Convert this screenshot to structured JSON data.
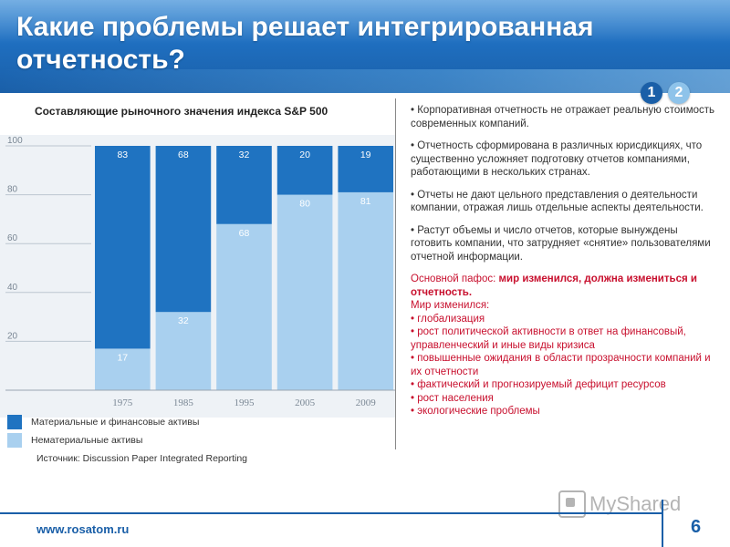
{
  "slide": {
    "title": "Какие проблемы решает интегрированная отчетность?",
    "pager": [
      "1",
      "2"
    ],
    "url": "www.rosatom.ru",
    "page_number": "6",
    "watermark": "MyShared"
  },
  "chart_title": "Составляющие рыночного значения индекса S&P 500",
  "legend": {
    "tangible": "Материальные и финансовые активы",
    "intangible": "Нематериальные активы"
  },
  "source": "Источник: Discussion Paper Integrated  Reporting",
  "colors": {
    "tangible": "#1f73c1",
    "intangible": "#a9d0ef",
    "header": "#1f6fc0",
    "accent_red": "#c8102e"
  },
  "chart_data": {
    "type": "bar",
    "stacked": true,
    "categories": [
      "1975",
      "1985",
      "1995",
      "2005",
      "2009"
    ],
    "series": [
      {
        "name": "Нематериальные активы",
        "values": [
          17,
          32,
          68,
          80,
          81
        ]
      },
      {
        "name": "Материальные и финансовые активы",
        "values": [
          83,
          68,
          32,
          20,
          19
        ]
      }
    ],
    "yticks": [
      "20",
      "40",
      "60",
      "80",
      "100"
    ],
    "ylim": [
      0,
      100
    ],
    "grid": true,
    "legend_position": "bottom-left"
  },
  "right_panel": {
    "bullets": [
      "• Корпоративная отчетность не отражает реальную стоимость современных компаний.",
      "• Отчетность сформирована в различных юрисдикциях, что существенно усложняет подготовку отчетов компаниями, работающими в нескольких странах.",
      "• Отчеты не дают цельного представления о деятельности компании, отражая лишь отдельные аспекты деятельности.",
      "• Растут объемы и число отчетов, которые вынуждены готовить компании, что затрудняет «снятие» пользователями отчетной информации."
    ],
    "main_label": "Основной пафос: ",
    "main_bold": "мир изменился, должна измениться и отчетность.",
    "changed_label": "Мир изменился:",
    "changes": [
      "• глобализация",
      "• рост политической активности в ответ на финансовый, управленческий и иные виды кризиса",
      "• повышенные ожидания в области прозрачности компаний и их отчетности",
      "• фактический и прогнозируемый дефицит ресурсов",
      "• рост населения",
      "• экологические проблемы"
    ]
  }
}
